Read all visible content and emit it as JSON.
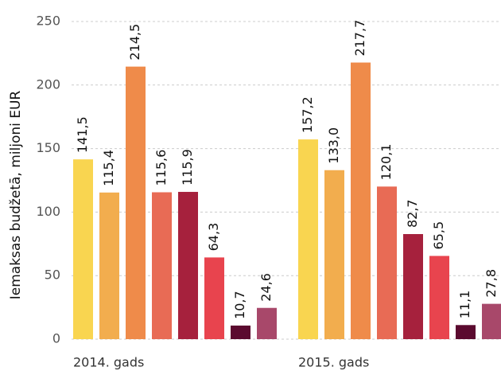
{
  "chart_data": {
    "type": "bar",
    "y_label": "Iemaksas budžetā, miljoni EUR",
    "categories": [
      "2014. gads",
      "2015. gads"
    ],
    "series": [
      {
        "color": "#f9d550",
        "values": [
          141.5,
          157.2
        ],
        "value_labels": [
          "141,5",
          "157,2"
        ]
      },
      {
        "color": "#f2ad4e",
        "values": [
          115.4,
          133.0
        ],
        "value_labels": [
          "115,4",
          "133,0"
        ]
      },
      {
        "color": "#ef8b4a",
        "values": [
          214.5,
          217.7
        ],
        "value_labels": [
          "214,5",
          "217,7"
        ]
      },
      {
        "color": "#e86b55",
        "values": [
          115.6,
          120.1
        ],
        "value_labels": [
          "115,6",
          "120,1"
        ]
      },
      {
        "color": "#a6213d",
        "values": [
          115.9,
          82.7
        ],
        "value_labels": [
          "115,9",
          "82,7"
        ]
      },
      {
        "color": "#e8444e",
        "values": [
          64.3,
          65.5
        ],
        "value_labels": [
          "64,3",
          "65,5"
        ]
      },
      {
        "color": "#5b0a2f",
        "values": [
          10.7,
          11.1
        ],
        "value_labels": [
          "10,7",
          "11,1"
        ]
      },
      {
        "color": "#a8486a",
        "values": [
          24.6,
          27.8
        ],
        "value_labels": [
          "24,6",
          "27,8"
        ]
      }
    ],
    "ylim": [
      0,
      250
    ],
    "yticks": [
      0,
      50,
      100,
      150,
      200,
      250
    ],
    "grid": true
  }
}
